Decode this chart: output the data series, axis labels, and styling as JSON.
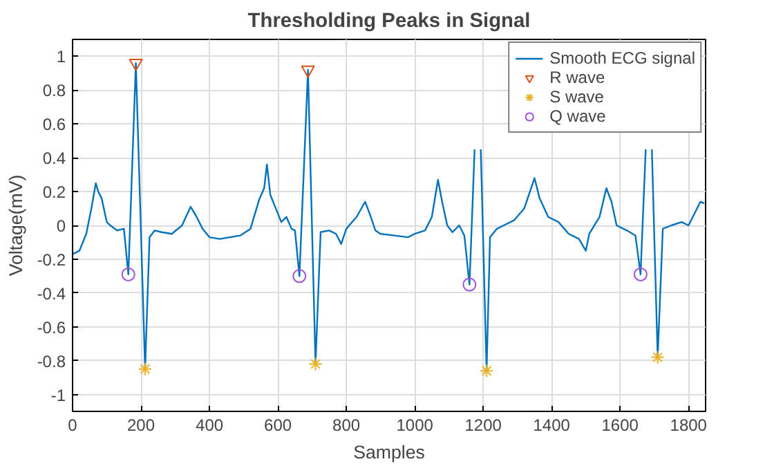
{
  "chart_data": {
    "type": "line",
    "title": "Thresholding Peaks in Signal",
    "xlabel": "Samples",
    "ylabel": "Voltage(mV)",
    "xlim": [
      0,
      1850
    ],
    "xticks": [
      0,
      200,
      400,
      600,
      800,
      1000,
      1200,
      1400,
      1600,
      1800
    ],
    "ylim": [
      -1.1,
      1.1
    ],
    "yticks": [
      -1,
      -0.8,
      -0.6,
      -0.4,
      -0.2,
      0,
      0.2,
      0.4,
      0.6,
      0.8,
      1
    ],
    "grid": true,
    "legend": "top right",
    "series": [
      {
        "name": "Smooth ECG signal",
        "color": "#0072bd",
        "marker": "none",
        "line_style": "solid",
        "x": [
          0,
          20,
          40,
          55,
          68,
          75,
          85,
          100,
          110,
          130,
          150,
          163,
          185,
          212,
          225,
          240,
          260,
          290,
          320,
          345,
          360,
          380,
          400,
          430,
          460,
          490,
          520,
          545,
          560,
          568,
          578,
          590,
          610,
          625,
          640,
          650,
          663,
          688,
          710,
          725,
          750,
          770,
          785,
          800,
          830,
          855,
          870,
          885,
          900,
          940,
          980,
          1000,
          1030,
          1050,
          1068,
          1080,
          1095,
          1110,
          1130,
          1145,
          1160,
          1175,
          1185,
          1193,
          1210,
          1220,
          1240,
          1260,
          1290,
          1320,
          1350,
          1365,
          1390,
          1420,
          1450,
          1480,
          1500,
          1510,
          1540,
          1560,
          1575,
          1590,
          1620,
          1645,
          1660,
          1675,
          1685,
          1693,
          1710,
          1725,
          1750,
          1780,
          1800,
          1820,
          1835,
          1846
        ],
        "values": [
          -0.17,
          -0.15,
          -0.05,
          0.1,
          0.25,
          0.2,
          0.16,
          0.02,
          0.0,
          -0.03,
          -0.02,
          -0.29,
          0.96,
          -0.85,
          -0.07,
          -0.03,
          -0.04,
          -0.05,
          0.0,
          0.11,
          0.06,
          -0.02,
          -0.07,
          -0.08,
          -0.07,
          -0.06,
          -0.02,
          0.15,
          0.22,
          0.36,
          0.18,
          0.12,
          0.02,
          0.05,
          -0.02,
          -0.03,
          -0.3,
          0.92,
          -0.82,
          -0.04,
          -0.03,
          -0.05,
          -0.11,
          -0.02,
          0.05,
          0.14,
          0.06,
          -0.03,
          -0.05,
          -0.06,
          -0.07,
          -0.05,
          -0.03,
          0.05,
          0.27,
          0.14,
          0.0,
          -0.04,
          0.0,
          -0.06,
          -0.35,
          0.45,
          null,
          0.45,
          -0.86,
          -0.07,
          -0.02,
          0.0,
          0.03,
          0.1,
          0.28,
          0.16,
          0.05,
          0.02,
          -0.05,
          -0.08,
          -0.15,
          -0.05,
          0.05,
          0.22,
          0.14,
          0.0,
          -0.03,
          -0.06,
          -0.29,
          0.45,
          null,
          0.45,
          -0.78,
          -0.02,
          0.0,
          0.02,
          0.0,
          0.08,
          0.14,
          0.13
        ]
      },
      {
        "name": "R wave",
        "type": "scatter",
        "color": "#d95319",
        "marker": "triangle",
        "x": [
          185,
          688
        ],
        "values": [
          0.96,
          0.92
        ]
      },
      {
        "name": "S wave",
        "type": "scatter",
        "color": "#edb120",
        "marker": "cross",
        "x": [
          212,
          710,
          1210,
          1710
        ],
        "values": [
          -0.85,
          -0.82,
          -0.86,
          -0.78
        ]
      },
      {
        "name": "Q wave",
        "type": "scatter",
        "color": "#a24fe0",
        "marker": "circle",
        "x": [
          163,
          663,
          1160,
          1660
        ],
        "values": [
          -0.29,
          -0.3,
          -0.35,
          -0.29
        ]
      }
    ]
  }
}
